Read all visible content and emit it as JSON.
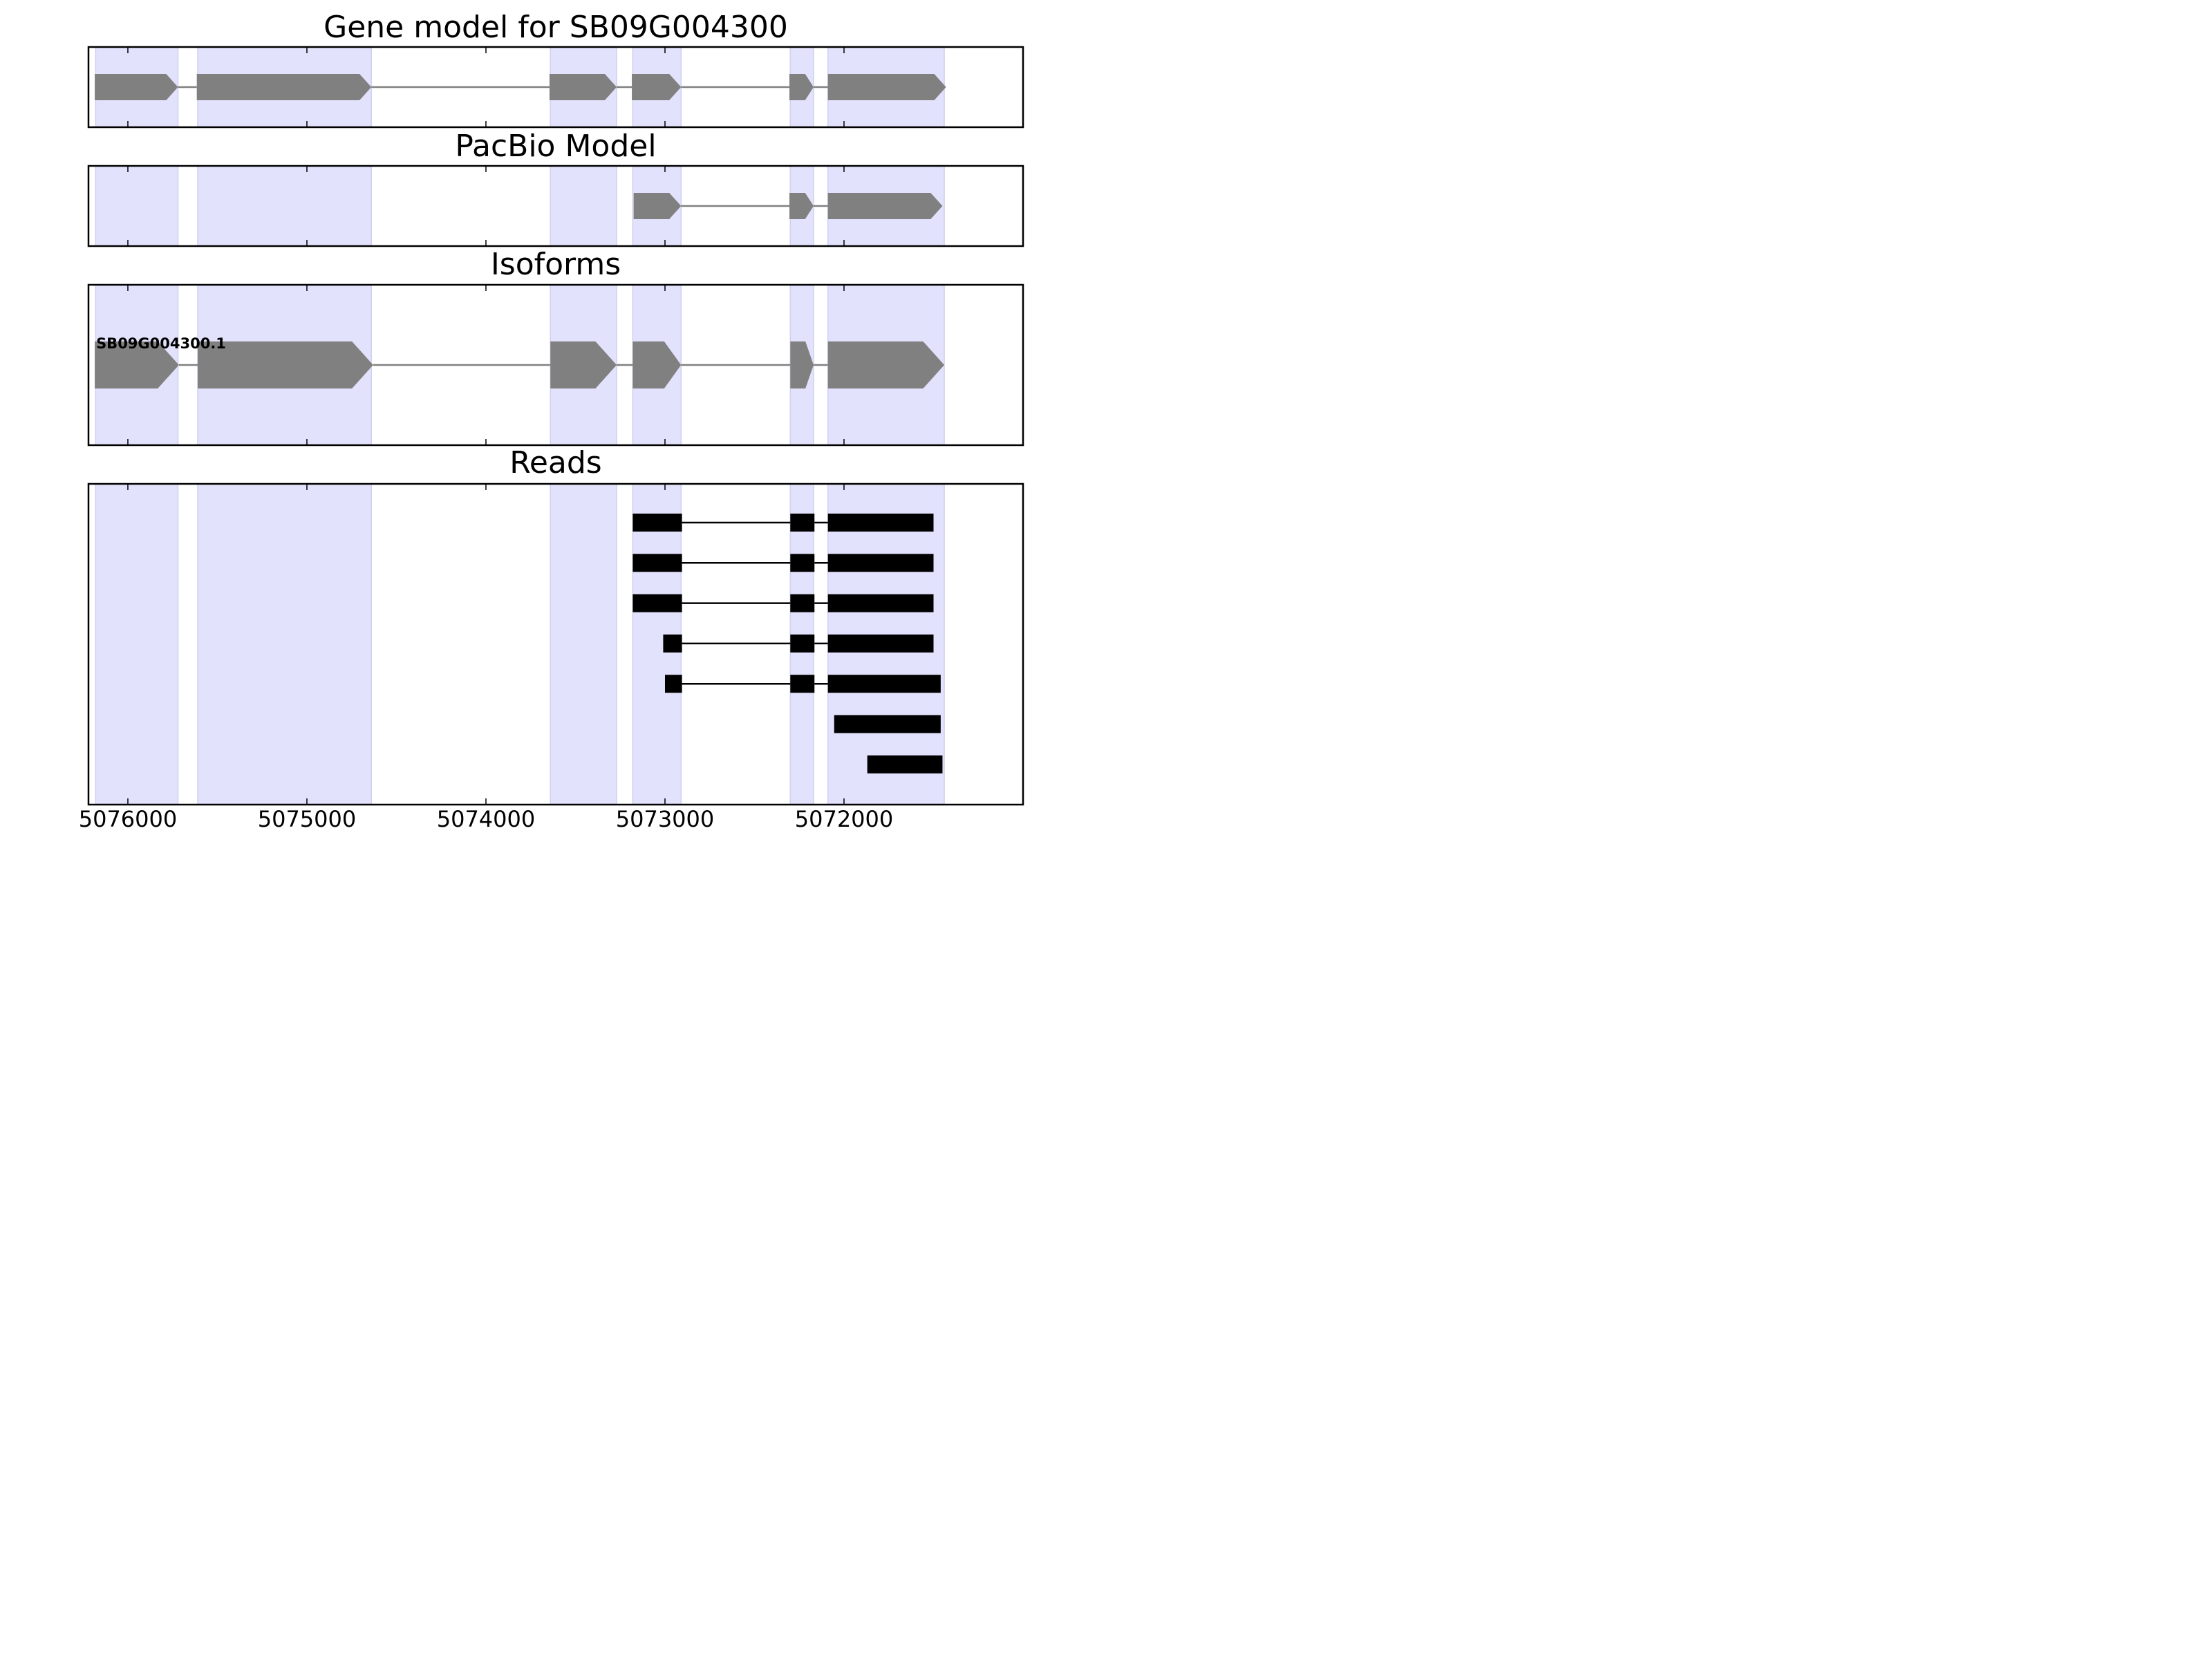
{
  "chart_data": {
    "type": "gene-track",
    "axis": {
      "direction": "reversed",
      "xlim": [
        5076220,
        5071000
      ],
      "ticks": [
        5076000,
        5075000,
        5074000,
        5073000,
        5072000
      ],
      "tick_labels": [
        "5076000",
        "5075000",
        "5074000",
        "5073000",
        "5072000"
      ]
    },
    "highlight_regions": [
      [
        5076180,
        5075720
      ],
      [
        5075610,
        5074640
      ],
      [
        5073640,
        5073270
      ],
      [
        5073180,
        5072910
      ],
      [
        5072300,
        5072170
      ],
      [
        5072090,
        5071440
      ]
    ],
    "panels": [
      {
        "title": "Gene model for SB09G004300",
        "features": [
          {
            "strand": "-",
            "exons": [
              [
                5076185,
                5075720
              ],
              [
                5075615,
                5074640
              ],
              [
                5073645,
                5073270
              ],
              [
                5073185,
                5072910
              ],
              [
                5072305,
                5072170
              ],
              [
                5072090,
                5071430
              ]
            ]
          }
        ]
      },
      {
        "title": "PacBio Model",
        "features": [
          {
            "strand": "-",
            "exons": [
              [
                5073175,
                5072910
              ],
              [
                5072305,
                5072170
              ],
              [
                5072090,
                5071450
              ]
            ]
          }
        ]
      },
      {
        "title": "Isoforms",
        "isoform_label": "SB09G004300.1",
        "features": [
          {
            "strand": "-",
            "exons": [
              [
                5076185,
                5075715
              ],
              [
                5075610,
                5074630
              ],
              [
                5073640,
                5073270
              ],
              [
                5073180,
                5072910
              ],
              [
                5072300,
                5072170
              ],
              [
                5072090,
                5071440
              ]
            ]
          }
        ]
      },
      {
        "title": "Reads",
        "features": [
          {
            "strand": "none",
            "exons": [
              [
                5073180,
                5072905
              ],
              [
                5072300,
                5072165
              ],
              [
                5072090,
                5071500
              ]
            ]
          },
          {
            "strand": "none",
            "exons": [
              [
                5073180,
                5072905
              ],
              [
                5072300,
                5072165
              ],
              [
                5072090,
                5071500
              ]
            ]
          },
          {
            "strand": "none",
            "exons": [
              [
                5073180,
                5072905
              ],
              [
                5072300,
                5072165
              ],
              [
                5072090,
                5071500
              ]
            ]
          },
          {
            "strand": "none",
            "exons": [
              [
                5073010,
                5072905
              ],
              [
                5072300,
                5072165
              ],
              [
                5072090,
                5071500
              ]
            ]
          },
          {
            "strand": "none",
            "exons": [
              [
                5073000,
                5072905
              ],
              [
                5072300,
                5072165
              ],
              [
                5072090,
                5071460
              ]
            ]
          },
          {
            "strand": "none",
            "exons": [
              [
                5072055,
                5071460
              ]
            ]
          },
          {
            "strand": "none",
            "exons": [
              [
                5071870,
                5071450
              ]
            ]
          }
        ]
      }
    ]
  },
  "colors": {
    "highlight": "#e2e2fc",
    "highlight_edge": "#cfcff2",
    "model_exon": "#808080",
    "model_intron": "#808080",
    "read_exon": "#000000",
    "read_intron": "#000000",
    "axes": "#000000"
  }
}
